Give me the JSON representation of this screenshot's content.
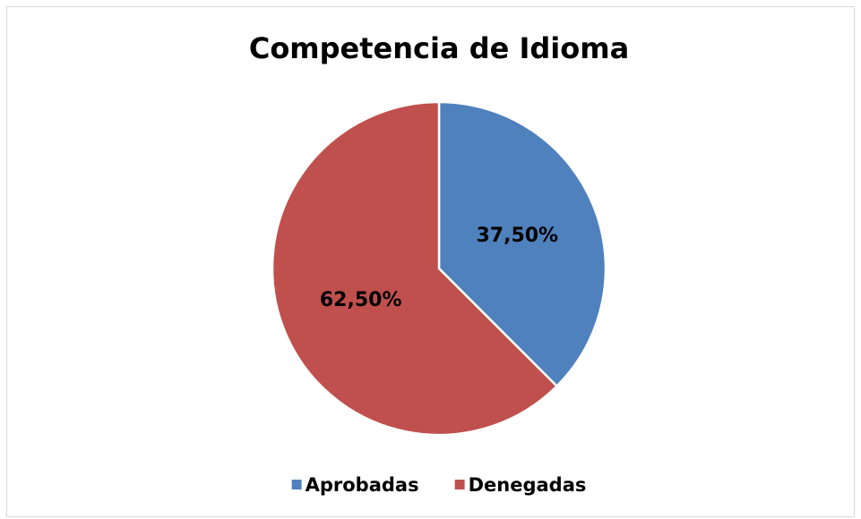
{
  "chart_data": {
    "type": "pie",
    "title": "Competencia de Idioma",
    "categories": [
      "Aprobadas",
      "Denegadas"
    ],
    "values": [
      37.5,
      62.5
    ],
    "value_labels": [
      "37,50%",
      "62,50%"
    ],
    "colors": [
      "#4f81bd",
      "#c0504d"
    ],
    "legend": "bottom"
  }
}
